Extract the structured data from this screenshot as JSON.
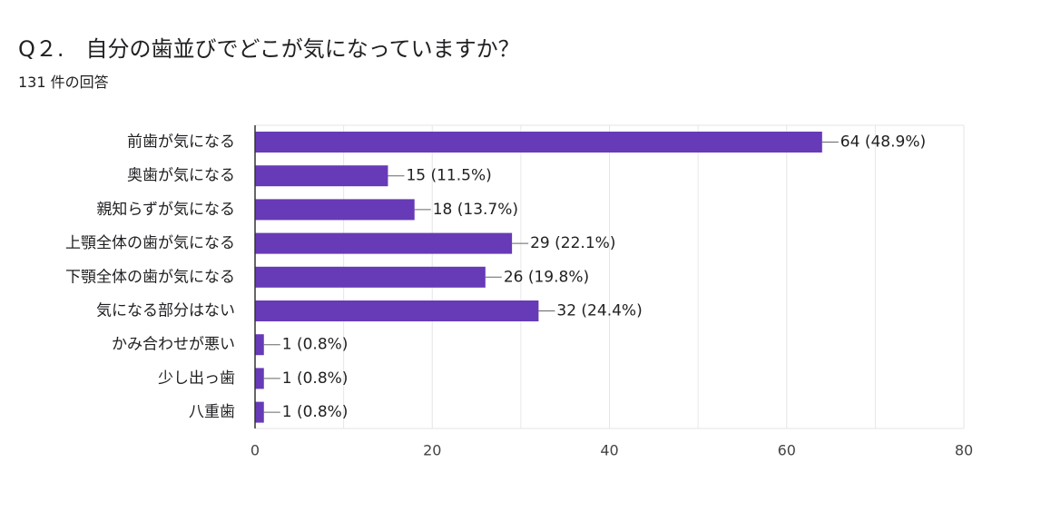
{
  "question": {
    "title": "Q２.　自分の歯並びでどこが気になっていますか？",
    "response_count": "131 件の回答"
  },
  "colors": {
    "bar": "#673ab7",
    "grid": "#e6e6e6",
    "axis": "#333333",
    "leader": "#666666"
  },
  "chart_data": {
    "type": "bar",
    "orientation": "horizontal",
    "categories": [
      "前歯が気になる",
      "奥歯が気になる",
      "親知らずが気になる",
      "上顎全体の歯が気になる",
      "下顎全体の歯が気になる",
      "気になる部分はない",
      "かみ合わせが悪い",
      "少し出っ歯",
      "八重歯"
    ],
    "values": [
      64,
      15,
      18,
      29,
      26,
      32,
      1,
      1,
      1
    ],
    "data_labels": [
      "64 (48.9%)",
      "15 (11.5%)",
      "18 (13.7%)",
      "29 (22.1%)",
      "26 (19.8%)",
      "32 (24.4%)",
      "1 (0.8%)",
      "1 (0.8%)",
      "1 (0.8%)"
    ],
    "xlim": [
      0,
      80
    ],
    "xticks": [
      0,
      20,
      40,
      60,
      80
    ],
    "grid": true
  }
}
